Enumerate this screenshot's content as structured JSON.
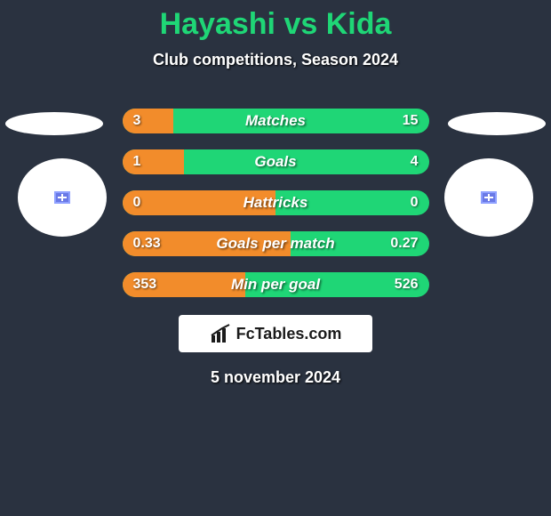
{
  "title": {
    "player1": "Hayashi",
    "vs": "vs",
    "player2": "Kida",
    "color": "#1fd676"
  },
  "subtitle": "Club competitions, Season 2024",
  "colors": {
    "background": "#2a3240",
    "bar_right": "#1fd676",
    "bar_left": "#f28c2b",
    "disc": "#ffffff",
    "disc_inner": "#6a79e6",
    "text": "#ffffff"
  },
  "stats": [
    {
      "label": "Matches",
      "left_val": "3",
      "right_val": "15",
      "left_pct": 16.7
    },
    {
      "label": "Goals",
      "left_val": "1",
      "right_val": "4",
      "left_pct": 20.0
    },
    {
      "label": "Hattricks",
      "left_val": "0",
      "right_val": "0",
      "left_pct": 50.0
    },
    {
      "label": "Goals per match",
      "left_val": "0.33",
      "right_val": "0.27",
      "left_pct": 55.0
    },
    {
      "label": "Min per goal",
      "left_val": "353",
      "right_val": "526",
      "left_pct": 40.2
    }
  ],
  "branding": "FcTables.com",
  "date": "5 november 2024"
}
